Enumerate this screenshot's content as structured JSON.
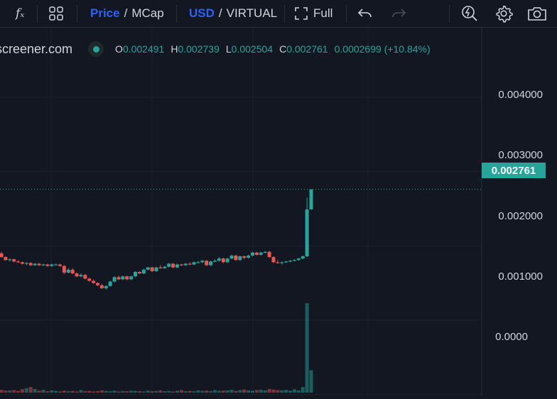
{
  "toolbar": {
    "indicators_label": "fₓ",
    "price_label": "Price",
    "mcap_label": "MCap",
    "usd_label": "USD",
    "virtual_label": "VIRTUAL",
    "full_label": "Full"
  },
  "legend": {
    "site": "screener.com",
    "o_key": "O",
    "o_val": "0.002491",
    "h_key": "H",
    "h_val": "0.002739",
    "l_key": "L",
    "l_val": "0.002504",
    "c_key": "C",
    "c_val": "0.002761",
    "change": "0.0002699 (+10.84%)"
  },
  "axis": {
    "labels": [
      "0.004000",
      "0.003000",
      "0.002000",
      "0.001000",
      "0.0000"
    ],
    "current_price": "0.002761"
  },
  "colors": {
    "up": "#26a69a",
    "down": "#ef5350",
    "background": "#131722",
    "accent": "#2962ff"
  },
  "chart_data": {
    "type": "candlestick",
    "ylim": [
      -6e-05,
      0.00485
    ],
    "y_ticks": [
      0.004,
      0.003,
      0.002,
      0.001,
      0.0
    ],
    "last_price": 0.002761,
    "candles": [
      [
        0.0019,
        0.00192,
        0.00184,
        0.00185
      ],
      [
        0.00185,
        0.00186,
        0.0018,
        0.00181
      ],
      [
        0.00181,
        0.00183,
        0.00179,
        0.00182
      ],
      [
        0.00182,
        0.00183,
        0.00178,
        0.00179
      ],
      [
        0.00179,
        0.00181,
        0.00177,
        0.00178
      ],
      [
        0.00178,
        0.00179,
        0.00175,
        0.00176
      ],
      [
        0.00176,
        0.00178,
        0.00174,
        0.00177
      ],
      [
        0.00177,
        0.00178,
        0.00173,
        0.00174
      ],
      [
        0.00174,
        0.00177,
        0.00173,
        0.00176
      ],
      [
        0.00176,
        0.00177,
        0.00173,
        0.00174
      ],
      [
        0.00174,
        0.00176,
        0.00173,
        0.00175
      ],
      [
        0.00175,
        0.00176,
        0.00172,
        0.00173
      ],
      [
        0.00173,
        0.00176,
        0.00172,
        0.00175
      ],
      [
        0.00175,
        0.00176,
        0.00174,
        0.00175
      ],
      [
        0.00175,
        0.00176,
        0.00172,
        0.00173
      ],
      [
        0.00173,
        0.00174,
        0.00162,
        0.00164
      ],
      [
        0.00164,
        0.0017,
        0.00163,
        0.00168
      ],
      [
        0.00168,
        0.0017,
        0.00162,
        0.00163
      ],
      [
        0.00163,
        0.00164,
        0.00158,
        0.00159
      ],
      [
        0.00159,
        0.00163,
        0.00158,
        0.00161
      ],
      [
        0.00161,
        0.00162,
        0.00155,
        0.00156
      ],
      [
        0.00156,
        0.00157,
        0.00152,
        0.00153
      ],
      [
        0.00153,
        0.00155,
        0.00149,
        0.0015
      ],
      [
        0.0015,
        0.00151,
        0.00146,
        0.00147
      ],
      [
        0.00147,
        0.00149,
        0.00142,
        0.00143
      ],
      [
        0.00143,
        0.00147,
        0.00141,
        0.00146
      ],
      [
        0.00146,
        0.00153,
        0.00145,
        0.00152
      ],
      [
        0.00152,
        0.00159,
        0.00151,
        0.00158
      ],
      [
        0.00158,
        0.0016,
        0.00154,
        0.00155
      ],
      [
        0.00155,
        0.0016,
        0.00154,
        0.00159
      ],
      [
        0.00159,
        0.0016,
        0.00154,
        0.00155
      ],
      [
        0.00155,
        0.0016,
        0.00154,
        0.00159
      ],
      [
        0.00159,
        0.00166,
        0.00158,
        0.00165
      ],
      [
        0.00165,
        0.00166,
        0.00162,
        0.00163
      ],
      [
        0.00163,
        0.00169,
        0.00162,
        0.00168
      ],
      [
        0.00168,
        0.00172,
        0.00167,
        0.00171
      ],
      [
        0.00171,
        0.00172,
        0.00165,
        0.00166
      ],
      [
        0.00166,
        0.00172,
        0.00165,
        0.00171
      ],
      [
        0.00171,
        0.00174,
        0.00169,
        0.0017
      ],
      [
        0.0017,
        0.00173,
        0.00169,
        0.00172
      ],
      [
        0.00172,
        0.00177,
        0.00171,
        0.00176
      ],
      [
        0.00176,
        0.00177,
        0.0017,
        0.00171
      ],
      [
        0.00171,
        0.00176,
        0.0017,
        0.00175
      ],
      [
        0.00175,
        0.00176,
        0.00173,
        0.00174
      ],
      [
        0.00174,
        0.00177,
        0.00173,
        0.00176
      ],
      [
        0.00176,
        0.00178,
        0.00174,
        0.00175
      ],
      [
        0.00175,
        0.00179,
        0.00174,
        0.00178
      ],
      [
        0.00178,
        0.0018,
        0.00177,
        0.00178
      ],
      [
        0.00178,
        0.00181,
        0.00177,
        0.0018
      ],
      [
        0.0018,
        0.00181,
        0.00173,
        0.00174
      ],
      [
        0.00174,
        0.0018,
        0.00173,
        0.00179
      ],
      [
        0.00179,
        0.00182,
        0.00178,
        0.0018
      ],
      [
        0.0018,
        0.00185,
        0.00179,
        0.00183
      ],
      [
        0.00183,
        0.00184,
        0.00177,
        0.00178
      ],
      [
        0.00178,
        0.00184,
        0.00177,
        0.00183
      ],
      [
        0.00183,
        0.00188,
        0.00182,
        0.00187
      ],
      [
        0.00187,
        0.00188,
        0.0018,
        0.00181
      ],
      [
        0.00181,
        0.00187,
        0.0018,
        0.00186
      ],
      [
        0.00186,
        0.00187,
        0.00182,
        0.00184
      ],
      [
        0.00184,
        0.00188,
        0.00183,
        0.00187
      ],
      [
        0.00187,
        0.00192,
        0.00186,
        0.00191
      ],
      [
        0.00191,
        0.00192,
        0.00187,
        0.00188
      ],
      [
        0.00188,
        0.00192,
        0.00187,
        0.00191
      ],
      [
        0.00191,
        0.00193,
        0.0019,
        0.00192
      ],
      [
        0.00192,
        0.00193,
        0.00184,
        0.00185
      ],
      [
        0.00185,
        0.00186,
        0.00177,
        0.00178
      ],
      [
        0.00178,
        0.00181,
        0.00176,
        0.00177
      ],
      [
        0.00177,
        0.00179,
        0.00175,
        0.00178
      ],
      [
        0.00178,
        0.0018,
        0.00177,
        0.00179
      ],
      [
        0.00179,
        0.00181,
        0.00178,
        0.0018
      ],
      [
        0.0018,
        0.00182,
        0.00179,
        0.00181
      ],
      [
        0.00181,
        0.00184,
        0.0018,
        0.00183
      ],
      [
        0.00183,
        0.00187,
        0.00182,
        0.00186
      ],
      [
        0.00186,
        0.00265,
        0.00185,
        0.00249
      ],
      [
        0.002491,
        0.002739,
        0.002504,
        0.002761
      ]
    ],
    "volumes": [
      1.0,
      0.7,
      0.8,
      0.9,
      0.6,
      1.2,
      1.6,
      2.0,
      1.3,
      0.7,
      1.0,
      0.5,
      0.8,
      0.6,
      0.4,
      0.7,
      0.5,
      0.6,
      0.4,
      0.9,
      0.5,
      0.6,
      0.4,
      0.5,
      0.8,
      0.6,
      0.5,
      0.7,
      0.4,
      0.6,
      0.5,
      0.7,
      0.6,
      0.5,
      0.4,
      0.7,
      0.5,
      0.6,
      0.8,
      0.5,
      0.6,
      0.4,
      0.7,
      0.9,
      0.5,
      0.6,
      0.5,
      0.8,
      0.6,
      0.7,
      0.5,
      0.9,
      0.6,
      0.7,
      0.8,
      1.0,
      0.6,
      0.9,
      1.1,
      0.8,
      0.7,
      0.9,
      1.0,
      0.8,
      1.3,
      1.1,
      0.9,
      0.8,
      1.0,
      0.7,
      1.2,
      0.8,
      2.0,
      32.0,
      8.0
    ]
  }
}
